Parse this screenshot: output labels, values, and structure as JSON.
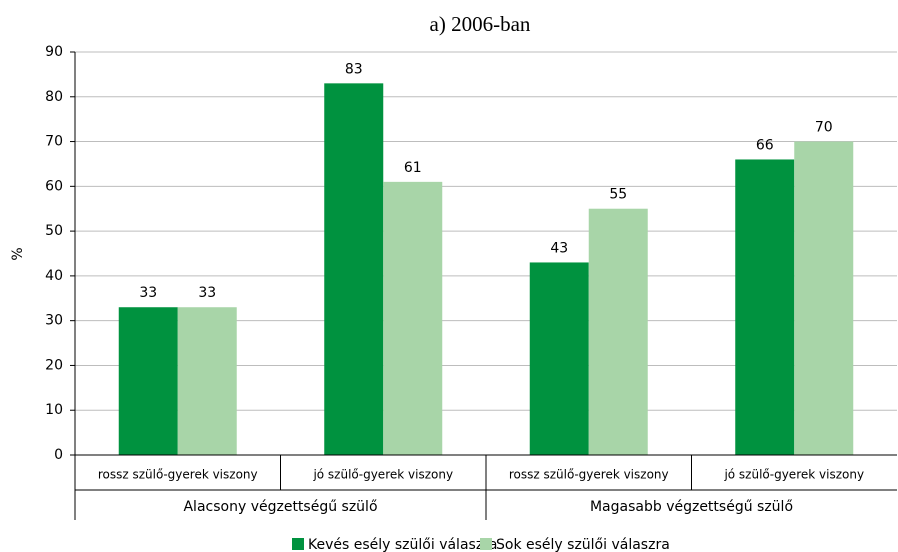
{
  "chart_data": {
    "type": "bar",
    "title": "a) 2006-ban",
    "ylabel": "%",
    "groups": [
      {
        "name": "Alacsony végzettségű szülő",
        "categories": [
          "rossz szülő-gyerek viszony",
          "jó szülő-gyerek viszony"
        ]
      },
      {
        "name": "Magasabb végzettségű szülő",
        "categories": [
          "rossz szülő-gyerek viszony",
          "jó szülő-gyerek viszony"
        ]
      }
    ],
    "series": [
      {
        "name": "Kevés esély szülői válaszra",
        "color": "#00923f",
        "values": [
          33,
          83,
          43,
          66
        ]
      },
      {
        "name": "Sok esély szülői válaszra",
        "color": "#a8d5a8",
        "values": [
          33,
          61,
          55,
          70
        ]
      }
    ],
    "ylim": [
      0,
      90
    ],
    "yticks": [
      0,
      10,
      20,
      30,
      40,
      50,
      60,
      70,
      80,
      90
    ],
    "grid": true,
    "legend": "bottom"
  }
}
